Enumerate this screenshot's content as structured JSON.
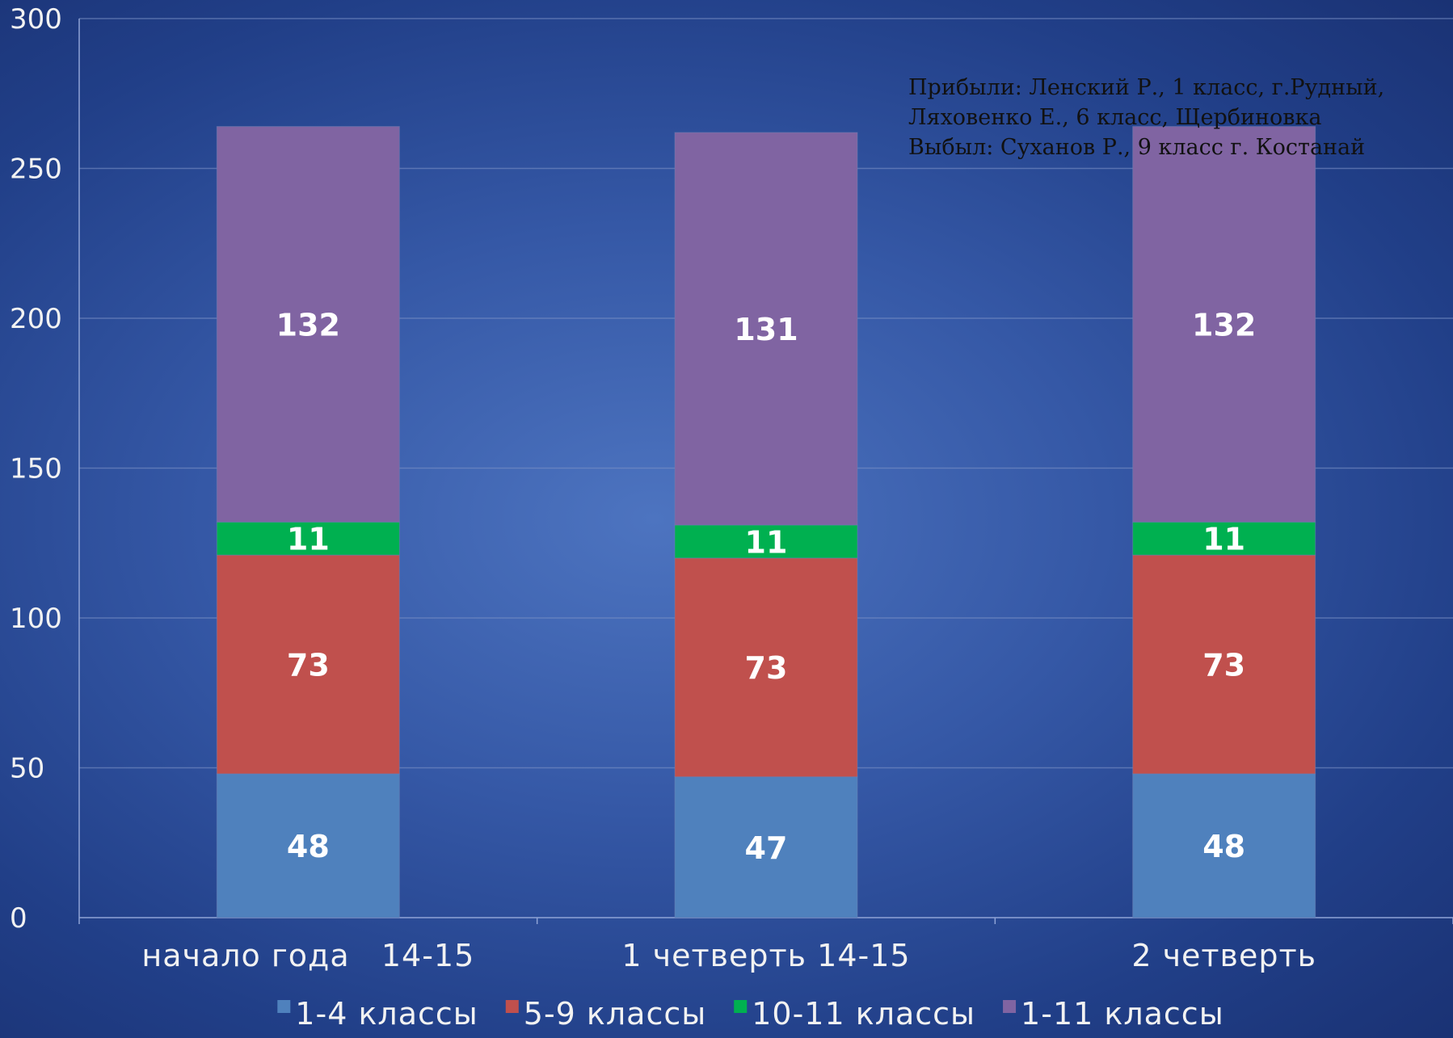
{
  "chart_data": {
    "type": "bar",
    "stacked": true,
    "categories": [
      "начало года   14-15",
      "1 четверть 14-15",
      "2 четверть"
    ],
    "series": [
      {
        "name": "1-4 классы",
        "values": [
          48,
          47,
          48
        ],
        "color": "#4f81bd"
      },
      {
        "name": "5-9 классы",
        "values": [
          73,
          73,
          73
        ],
        "color": "#c0504d"
      },
      {
        "name": "10-11 классы",
        "values": [
          11,
          11,
          11
        ],
        "color": "#00b050"
      },
      {
        "name": "1-11 классы",
        "values": [
          132,
          131,
          132
        ],
        "color": "#8064a2"
      }
    ],
    "ylim": [
      0,
      300
    ],
    "yticks": [
      0,
      50,
      100,
      150,
      200,
      250,
      300
    ],
    "grid": true,
    "legend": "bottom",
    "annotation": [
      "Прибыли: Ленский Р., 1 класс, г.Рудный,",
      "Ляховенко Е., 6 класс, Щербиновка",
      "Выбыл: Суханов Р., 9 класс г. Костанай"
    ]
  }
}
